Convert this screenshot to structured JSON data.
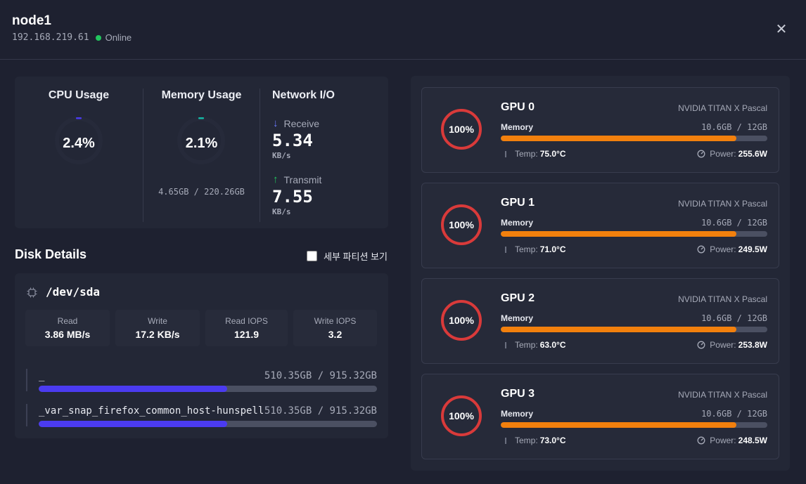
{
  "header": {
    "title": "node1",
    "ip": "192.168.219.61",
    "status": "Online",
    "status_color": "#22c55e",
    "close_glyph": "✕"
  },
  "metrics": {
    "cpu": {
      "title": "CPU Usage",
      "value": "2.4%",
      "percent": 2.4,
      "accent": "#4b3bf0"
    },
    "memory": {
      "title": "Memory Usage",
      "value": "2.1%",
      "percent": 2.1,
      "detail": "4.65GB / 220.26GB",
      "accent": "#14b8a6"
    },
    "network": {
      "title": "Network I/O",
      "receive": {
        "label": "Receive",
        "value": "5.34",
        "unit": "KB/s",
        "arrow": "↓",
        "color": "#6b7cff"
      },
      "transmit": {
        "label": "Transmit",
        "value": "7.55",
        "unit": "KB/s",
        "arrow": "↑",
        "color": "#22c55e"
      }
    }
  },
  "disk": {
    "heading": "Disk Details",
    "toggle_label": "세부 파티션 보기",
    "device": "/dev/sda",
    "stats": [
      {
        "label": "Read",
        "value": "3.86 MB/s"
      },
      {
        "label": "Write",
        "value": "17.2 KB/s"
      },
      {
        "label": "Read IOPS",
        "value": "121.9"
      },
      {
        "label": "Write IOPS",
        "value": "3.2"
      }
    ],
    "partitions": [
      {
        "name": "_",
        "size": "510.35GB / 915.32GB",
        "fraction": 0.5576
      },
      {
        "name": "_var_snap_firefox_common_host-hunspell",
        "size": "510.35GB / 915.32GB",
        "fraction": 0.5576
      }
    ]
  },
  "gpus": [
    {
      "name": "GPU 0",
      "model": "NVIDIA TITAN X Pascal",
      "util": "100%",
      "mem_label": "Memory",
      "mem": "10.6GB / 12GB",
      "mem_fraction": 0.8833,
      "temp_label": "Temp:",
      "temp": "75.0°C",
      "power_label": "Power:",
      "power": "255.6W"
    },
    {
      "name": "GPU 1",
      "model": "NVIDIA TITAN X Pascal",
      "util": "100%",
      "mem_label": "Memory",
      "mem": "10.6GB / 12GB",
      "mem_fraction": 0.8833,
      "temp_label": "Temp:",
      "temp": "71.0°C",
      "power_label": "Power:",
      "power": "249.5W"
    },
    {
      "name": "GPU 2",
      "model": "NVIDIA TITAN X Pascal",
      "util": "100%",
      "mem_label": "Memory",
      "mem": "10.6GB / 12GB",
      "mem_fraction": 0.8833,
      "temp_label": "Temp:",
      "temp": "63.0°C",
      "power_label": "Power:",
      "power": "253.8W"
    },
    {
      "name": "GPU 3",
      "model": "NVIDIA TITAN X Pascal",
      "util": "100%",
      "mem_label": "Memory",
      "mem": "10.6GB / 12GB",
      "mem_fraction": 0.8833,
      "temp_label": "Temp:",
      "temp": "73.0°C",
      "power_label": "Power:",
      "power": "248.5W"
    }
  ],
  "colors": {
    "gpu_ring": "#d93a3a",
    "gpu_memory_bar": "#f2800d",
    "disk_bar": "#4b3bf0"
  }
}
